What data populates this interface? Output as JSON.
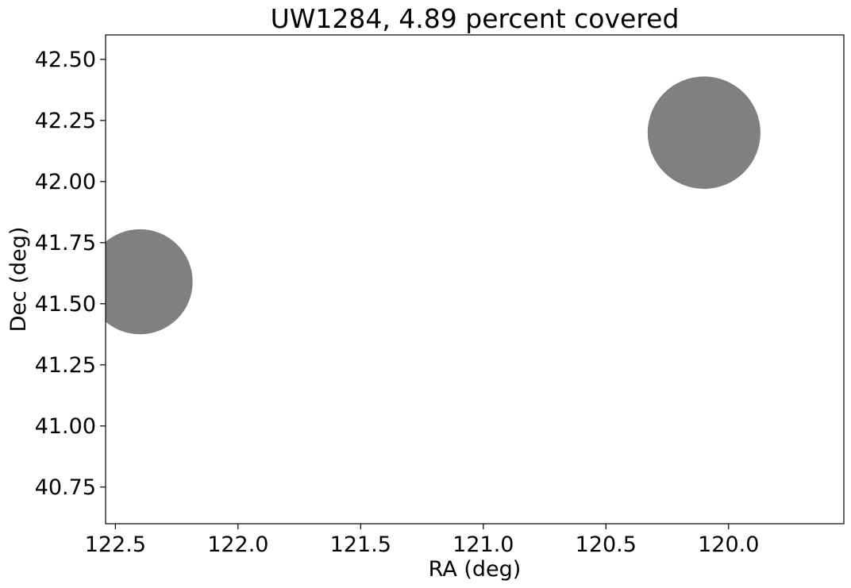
{
  "chart_data": {
    "type": "scatter",
    "title": "UW1284, 4.89 percent covered",
    "xlabel": "RA (deg)",
    "ylabel": "Dec (deg)",
    "x_inverted": true,
    "xlim": [
      122.54,
      119.53
    ],
    "ylim": [
      40.6,
      42.6
    ],
    "x_ticks": [
      122.5,
      122.0,
      121.5,
      121.0,
      120.5,
      120.0
    ],
    "x_tick_labels": [
      "122.5",
      "122.0",
      "121.5",
      "121.0",
      "120.5",
      "120.0"
    ],
    "y_ticks": [
      40.75,
      41.0,
      41.25,
      41.5,
      41.75,
      42.0,
      42.25,
      42.5
    ],
    "y_tick_labels": [
      "40.75",
      "41.00",
      "41.25",
      "41.50",
      "41.75",
      "42.00",
      "42.25",
      "42.50"
    ],
    "grid": false,
    "marker_color": "#808080",
    "points": [
      {
        "x": 122.4,
        "y": 41.59,
        "rx": 0.215,
        "ry": 0.215
      },
      {
        "x": 120.1,
        "y": 42.2,
        "rx": 0.23,
        "ry": 0.23
      }
    ]
  }
}
